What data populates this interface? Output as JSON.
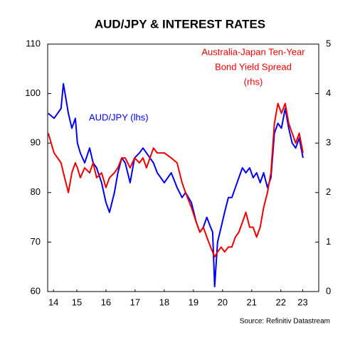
{
  "chart_data": {
    "type": "line",
    "title": "AUD/JPY & INTEREST RATES",
    "x": [
      14.52,
      14.72,
      14.96,
      15.04,
      15.21,
      15.33,
      15.45,
      15.52,
      15.62,
      15.77,
      15.94,
      16.06,
      16.18,
      16.35,
      16.5,
      16.62,
      16.79,
      16.91,
      17.04,
      17.16,
      17.33,
      17.48,
      17.65,
      17.77,
      17.89,
      18.01,
      18.13,
      18.26,
      18.38,
      18.5,
      18.74,
      18.94,
      19.11,
      19.23,
      19.43,
      19.6,
      19.72,
      19.84,
      19.96,
      20.09,
      20.16,
      20.23,
      20.33,
      20.45,
      20.57,
      20.7,
      20.82,
      20.94,
      21.06,
      21.18,
      21.3,
      21.43,
      21.55,
      21.67,
      21.79,
      21.91,
      22.04,
      22.16,
      22.28,
      22.4,
      22.52,
      22.65,
      22.77,
      22.89,
      23.01,
      23.13,
      23.26
    ],
    "series": [
      {
        "name": "AUD/JPY (lhs)",
        "color": "#0000ee",
        "values": [
          96,
          95,
          97,
          102,
          96,
          93,
          95,
          90,
          88,
          86,
          89,
          86,
          85,
          82,
          78,
          76,
          80,
          84,
          87,
          86,
          82,
          87,
          88,
          89,
          88,
          87,
          86,
          84,
          83,
          82,
          84,
          81,
          79,
          80,
          78,
          74,
          72,
          73,
          75,
          73,
          72,
          61,
          70,
          73,
          76,
          79,
          79,
          81,
          83,
          85,
          84,
          85,
          83,
          84,
          82,
          84,
          81,
          83,
          92,
          94,
          93,
          97,
          93,
          90,
          89,
          91,
          87
        ]
      },
      {
        "name": "Australia-Japan Ten-Year Bond Yield Spread (rhs)",
        "color": "#ee0000",
        "axis": "y2",
        "values": [
          3.2,
          2.8,
          2.6,
          2.4,
          2.0,
          2.4,
          2.6,
          2.5,
          2.3,
          2.5,
          2.4,
          2.6,
          2.3,
          2.4,
          2.1,
          2.3,
          2.4,
          2.5,
          2.7,
          2.7,
          2.5,
          2.7,
          2.6,
          2.7,
          2.5,
          2.7,
          2.9,
          2.8,
          2.8,
          2.8,
          2.7,
          2.6,
          2.2,
          2.0,
          1.7,
          1.4,
          1.2,
          1.3,
          1.1,
          0.9,
          0.8,
          0.7,
          0.8,
          0.9,
          0.8,
          0.9,
          0.9,
          1.1,
          1.2,
          1.4,
          1.6,
          1.3,
          1.3,
          1.1,
          1.3,
          1.7,
          2.0,
          2.4,
          3.4,
          3.8,
          3.6,
          3.8,
          3.4,
          3.2,
          3.0,
          3.2,
          2.8
        ]
      }
    ],
    "xlim": [
      14.5,
      23.8
    ],
    "xticks": [
      {
        "value": 14.7,
        "label": "14"
      },
      {
        "value": 15.5,
        "label": "15"
      },
      {
        "value": 16.5,
        "label": "16"
      },
      {
        "value": 17.5,
        "label": "17"
      },
      {
        "value": 18.5,
        "label": "18"
      },
      {
        "value": 19.5,
        "label": "19"
      },
      {
        "value": 20.5,
        "label": "20"
      },
      {
        "value": 21.5,
        "label": "21"
      },
      {
        "value": 22.5,
        "label": "22"
      },
      {
        "value": 23.25,
        "label": "23"
      }
    ],
    "ylim": [
      60,
      110
    ],
    "yticks": [
      60,
      70,
      80,
      90,
      100,
      110
    ],
    "y2lim": [
      0,
      5
    ],
    "y2ticks": [
      0,
      1,
      2,
      3,
      4,
      5
    ],
    "grid": false,
    "annotations": [
      {
        "lines": [
          "AUD/JPY (lhs)"
        ],
        "color": "#0000ee"
      },
      {
        "lines": [
          "Australia-Japan Ten-Year",
          "Bond Yield Spread",
          "(rhs)"
        ],
        "color": "#ee0000"
      }
    ],
    "source": "Source: Refinitiv Datastream"
  }
}
